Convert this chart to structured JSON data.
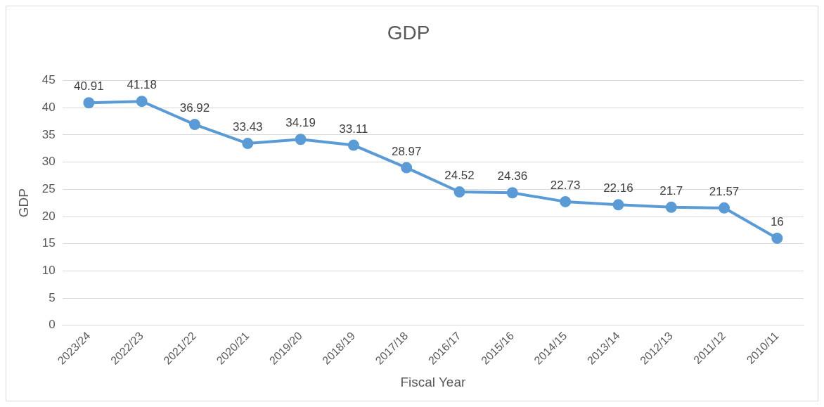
{
  "chart_data": {
    "type": "line",
    "title": "GDP",
    "xlabel": "Fiscal Year",
    "ylabel": "GDP",
    "categories": [
      "2023/24",
      "2022/23",
      "2021/22",
      "2020/21",
      "2019/20",
      "2018/19",
      "2017/18",
      "2016/17",
      "2015/16",
      "2014/15",
      "2013/14",
      "2012/13",
      "2011/12",
      "2010/11"
    ],
    "series": [
      {
        "color": "#5b9bd5",
        "values": [
          40.91,
          41.18,
          36.92,
          33.43,
          34.19,
          33.11,
          28.97,
          24.52,
          24.36,
          22.73,
          22.16,
          21.7,
          21.57,
          16
        ]
      }
    ],
    "ylim": [
      0,
      45
    ],
    "yticks": [
      0,
      5,
      10,
      15,
      20,
      25,
      30,
      35,
      40,
      45
    ],
    "grid": "y",
    "data_labels": true,
    "marker": "circle",
    "line_style": "solid",
    "legend": false
  }
}
